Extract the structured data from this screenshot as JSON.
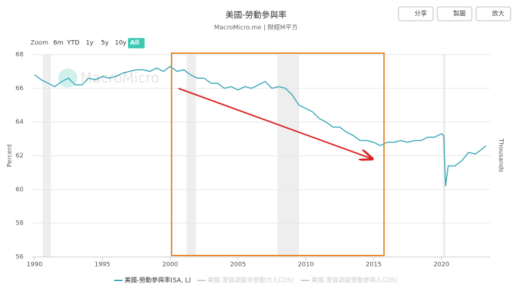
{
  "chart_data": {
    "type": "line",
    "title": "美國-勞動參與率",
    "subtitle": "MacroMicro.me | 財經M平方",
    "watermark": "MacroMicro",
    "toolbar": [
      "分享",
      "製圖",
      "放大"
    ],
    "zoom_label": "Zoom",
    "zoom_options": [
      "6m",
      "YTD",
      "1y",
      "5y",
      "10y",
      "All"
    ],
    "y_label": "Percent",
    "y2_label": "Thousands",
    "x": [
      1990,
      1990.5,
      1991,
      1991.5,
      1992,
      1992.5,
      1993,
      1993.5,
      1994,
      1994.5,
      1995,
      1995.5,
      1996,
      1996.5,
      1997,
      1997.5,
      1998,
      1998.5,
      1999,
      1999.5,
      2000,
      2000.5,
      2001,
      2001.5,
      2002,
      2002.5,
      2003,
      2003.5,
      2004,
      2004.5,
      2005,
      2005.5,
      2006,
      2006.5,
      2007,
      2007.5,
      2008,
      2008.5,
      2009,
      2009.5,
      2010,
      2010.5,
      2011,
      2011.5,
      2012,
      2012.5,
      2013,
      2013.5,
      2014,
      2014.5,
      2015,
      2015.5,
      2016,
      2016.5,
      2017,
      2017.5,
      2018,
      2018.5,
      2019,
      2019.5,
      2020,
      2020.17,
      2020.3,
      2020.5,
      2021,
      2021.5,
      2022,
      2022.5,
      2023,
      2023.3
    ],
    "series": [
      {
        "name": "美國-勞動參與率(SA, L)",
        "color": "#3aa6b9",
        "values": [
          66.8,
          66.5,
          66.3,
          66.1,
          66.4,
          66.6,
          66.2,
          66.2,
          66.6,
          66.5,
          66.7,
          66.6,
          66.7,
          66.9,
          67.0,
          67.1,
          67.1,
          67.0,
          67.2,
          67.0,
          67.3,
          67.0,
          67.1,
          66.8,
          66.6,
          66.6,
          66.3,
          66.3,
          66.0,
          66.1,
          65.9,
          66.1,
          66.0,
          66.2,
          66.4,
          66.0,
          66.1,
          66.0,
          65.6,
          65.0,
          64.8,
          64.6,
          64.2,
          64.0,
          63.7,
          63.7,
          63.4,
          63.2,
          62.9,
          62.9,
          62.8,
          62.6,
          62.8,
          62.8,
          62.9,
          62.8,
          62.9,
          62.9,
          63.1,
          63.1,
          63.3,
          63.2,
          60.2,
          61.4,
          61.4,
          61.7,
          62.2,
          62.1,
          62.4,
          62.6
        ]
      }
    ],
    "hidden_legend": [
      "美國-家庭調查非勞動力人口(R)",
      "美國-家庭調查勞動參與人口(R)"
    ],
    "recessions": [
      [
        1990.6,
        1991.2
      ],
      [
        2001.2,
        2001.9
      ],
      [
        2007.9,
        2009.5
      ],
      [
        2020.1,
        2020.3
      ]
    ],
    "xlim": [
      1989.8,
      2023.6
    ],
    "xticks": [
      1990,
      1995,
      2000,
      2005,
      2010,
      2015,
      2020
    ],
    "ylim": [
      56,
      68
    ],
    "yticks": [
      56,
      58,
      60,
      62,
      64,
      66,
      68
    ],
    "grid": true
  }
}
